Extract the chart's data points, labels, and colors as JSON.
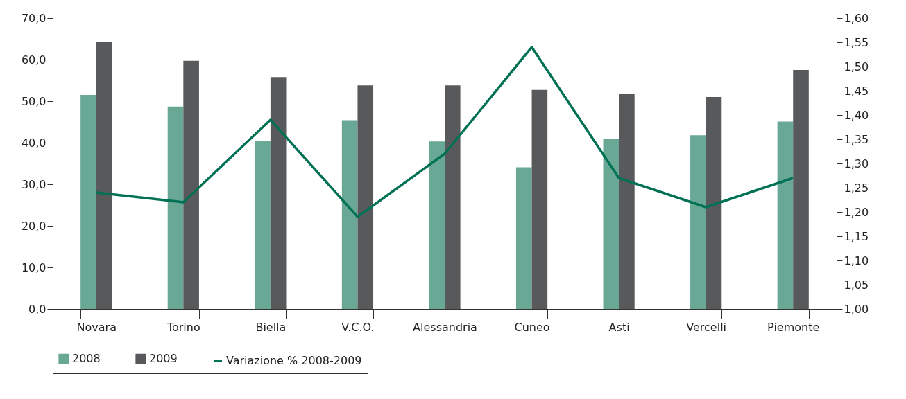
{
  "chart_data": {
    "type": "bar",
    "categories": [
      "Novara",
      "Torino",
      "Biella",
      "V.C.O.",
      "Alessandria",
      "Cuneo",
      "Asti",
      "Vercelli",
      "Piemonte"
    ],
    "series": [
      {
        "name": "2008",
        "color": "#68a895",
        "values": [
          51.5,
          48.7,
          40.4,
          45.4,
          40.3,
          34.1,
          41.0,
          41.8,
          45.1
        ]
      },
      {
        "name": "2009",
        "color": "#58595b",
        "values": [
          64.3,
          59.7,
          55.8,
          53.8,
          53.8,
          52.7,
          51.7,
          51.0,
          57.5
        ]
      },
      {
        "name": "Variazione % 2008-2009",
        "type": "line",
        "axis": "y2",
        "color": "#007155",
        "values": [
          1.24,
          1.22,
          1.39,
          1.19,
          1.32,
          1.54,
          1.27,
          1.21,
          1.27
        ]
      }
    ],
    "ylim": [
      0,
      70
    ],
    "yticks": [
      {
        "value": 0,
        "label": "0,0"
      },
      {
        "value": 10,
        "label": "10,0"
      },
      {
        "value": 20,
        "label": "20,0"
      },
      {
        "value": 30,
        "label": "30,0"
      },
      {
        "value": 40,
        "label": "40,0"
      },
      {
        "value": 50,
        "label": "50,0"
      },
      {
        "value": 60,
        "label": "60,0"
      },
      {
        "value": 70,
        "label": "70,0"
      }
    ],
    "y2lim": [
      1,
      1.6
    ],
    "y2ticks": [
      {
        "value": 1,
        "label": "1,00"
      },
      {
        "value": 1.05,
        "label": "1,05"
      },
      {
        "value": 1.1,
        "label": "1,10"
      },
      {
        "value": 1.15,
        "label": "1,15"
      },
      {
        "value": 1.2,
        "label": "1,20"
      },
      {
        "value": 1.25,
        "label": "1,25"
      },
      {
        "value": 1.3,
        "label": "1,30"
      },
      {
        "value": 1.35,
        "label": "1,35"
      },
      {
        "value": 1.4,
        "label": "1,40"
      },
      {
        "value": 1.45,
        "label": "1,45"
      },
      {
        "value": 1.5,
        "label": "1,50"
      },
      {
        "value": 1.55,
        "label": "1,55"
      },
      {
        "value": 1.6,
        "label": "1,60"
      }
    ],
    "legend": "bottom"
  }
}
